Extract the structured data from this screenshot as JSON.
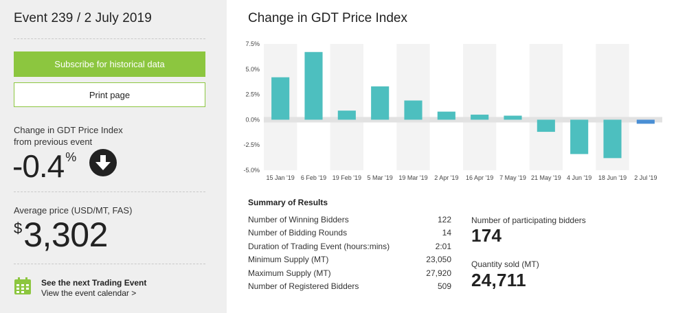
{
  "sidebar": {
    "event_title": "Event 239 / 2 July 2019",
    "subscribe_label": "Subscribe for historical data",
    "print_label": "Print page",
    "change_label_line1": "Change in GDT Price Index",
    "change_label_line2": "from previous event",
    "change_value": "-0.4",
    "change_unit": "%",
    "change_direction_icon": "arrow-down-icon",
    "avg_price_label": "Average price (USD/MT, FAS)",
    "avg_price_currency": "$",
    "avg_price_value": "3,302",
    "next_event_title": "See the next Trading Event",
    "next_event_link": "View the event calendar >",
    "calendar_icon": "calendar-icon",
    "accent_color": "#8cc63f"
  },
  "main": {
    "chart_title": "Change in GDT Price Index",
    "summary_title": "Summary of Results",
    "summary_rows": [
      {
        "label": "Number of Winning Bidders",
        "value": "122"
      },
      {
        "label": "Number of Bidding Rounds",
        "value": "14"
      },
      {
        "label": "Duration of Trading Event (hours:mins)",
        "value": "2:01"
      },
      {
        "label": "Minimum Supply (MT)",
        "value": "23,050"
      },
      {
        "label": "Maximum Supply (MT)",
        "value": "27,920"
      },
      {
        "label": "Number of Registered Bidders",
        "value": "509"
      }
    ],
    "participating_label": "Number of participating bidders",
    "participating_value": "174",
    "quantity_label": "Quantity sold (MT)",
    "quantity_value": "24,711"
  },
  "chart_data": {
    "type": "bar",
    "title": "Change in GDT Price Index",
    "categories": [
      "15 Jan '19",
      "6 Feb '19",
      "19 Feb '19",
      "5 Mar '19",
      "19 Mar '19",
      "2 Apr '19",
      "16 Apr '19",
      "7 May '19",
      "21 May '19",
      "4 Jun '19",
      "18 Jun '19",
      "2 Jul '19"
    ],
    "values": [
      4.2,
      6.7,
      0.9,
      3.3,
      1.9,
      0.8,
      0.5,
      0.4,
      -1.2,
      -3.4,
      -3.8,
      -0.4
    ],
    "ylim": [
      -5.0,
      7.5
    ],
    "yticks": [
      "7.5%",
      "5.0%",
      "2.5%",
      "0.0%",
      "-2.5%",
      "-5.0%"
    ],
    "ytick_values": [
      7.5,
      5.0,
      2.5,
      0.0,
      -2.5,
      -5.0
    ],
    "bar_color": "#4dbfbf",
    "latest_bar_color": "#4a8fd4",
    "band_color": "#f3f3f3",
    "zero_band_color": "#e2e2e2",
    "grid": false,
    "legend": "none"
  }
}
